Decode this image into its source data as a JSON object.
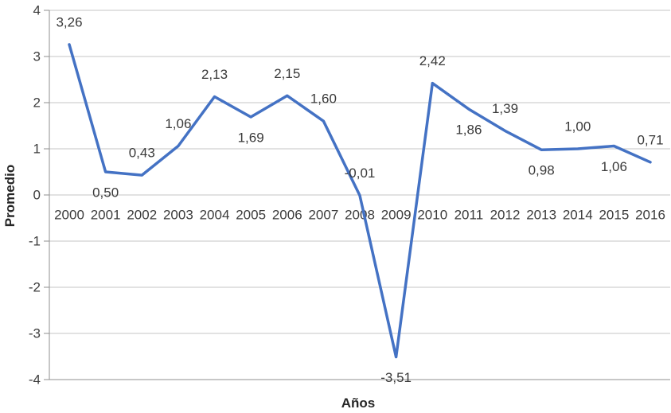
{
  "chart_data": {
    "type": "line",
    "title": "",
    "xlabel": "Años",
    "ylabel": "Promedio",
    "categories": [
      "2000",
      "2001",
      "2002",
      "2003",
      "2004",
      "2005",
      "2006",
      "2007",
      "2008",
      "2009",
      "2010",
      "2011",
      "2012",
      "2013",
      "2014",
      "2015",
      "2016"
    ],
    "values": [
      3.26,
      0.5,
      0.43,
      1.06,
      2.13,
      1.69,
      2.15,
      1.6,
      -0.01,
      -3.51,
      2.42,
      1.86,
      1.39,
      0.98,
      1.0,
      1.06,
      0.71
    ],
    "point_labels": [
      "3,26",
      "0,50",
      "0,43",
      "1,06",
      "2,13",
      "1,69",
      "2,15",
      "1,60",
      "-0,01",
      "-3,51",
      "2,42",
      "1,86",
      "1,39",
      "0,98",
      "1,00",
      "1,06",
      "0,71"
    ],
    "label_positions": [
      "above",
      "below",
      "above",
      "above",
      "above",
      "below",
      "above",
      "above",
      "above",
      "below",
      "above",
      "below",
      "above",
      "below",
      "above",
      "below",
      "above"
    ],
    "ylim": [
      -4,
      4
    ],
    "ytick_step": 1,
    "yticks": [
      "4",
      "3",
      "2",
      "1",
      "0",
      "-1",
      "-2",
      "-3",
      "-4"
    ],
    "grid": true,
    "legend": "none",
    "colors": {
      "line": "#4472C4",
      "gridline": "#C6C6C6",
      "axis": "#8F8F8F",
      "tick_text": "#3C3C3C",
      "label_text": "#3A3A3A"
    }
  }
}
